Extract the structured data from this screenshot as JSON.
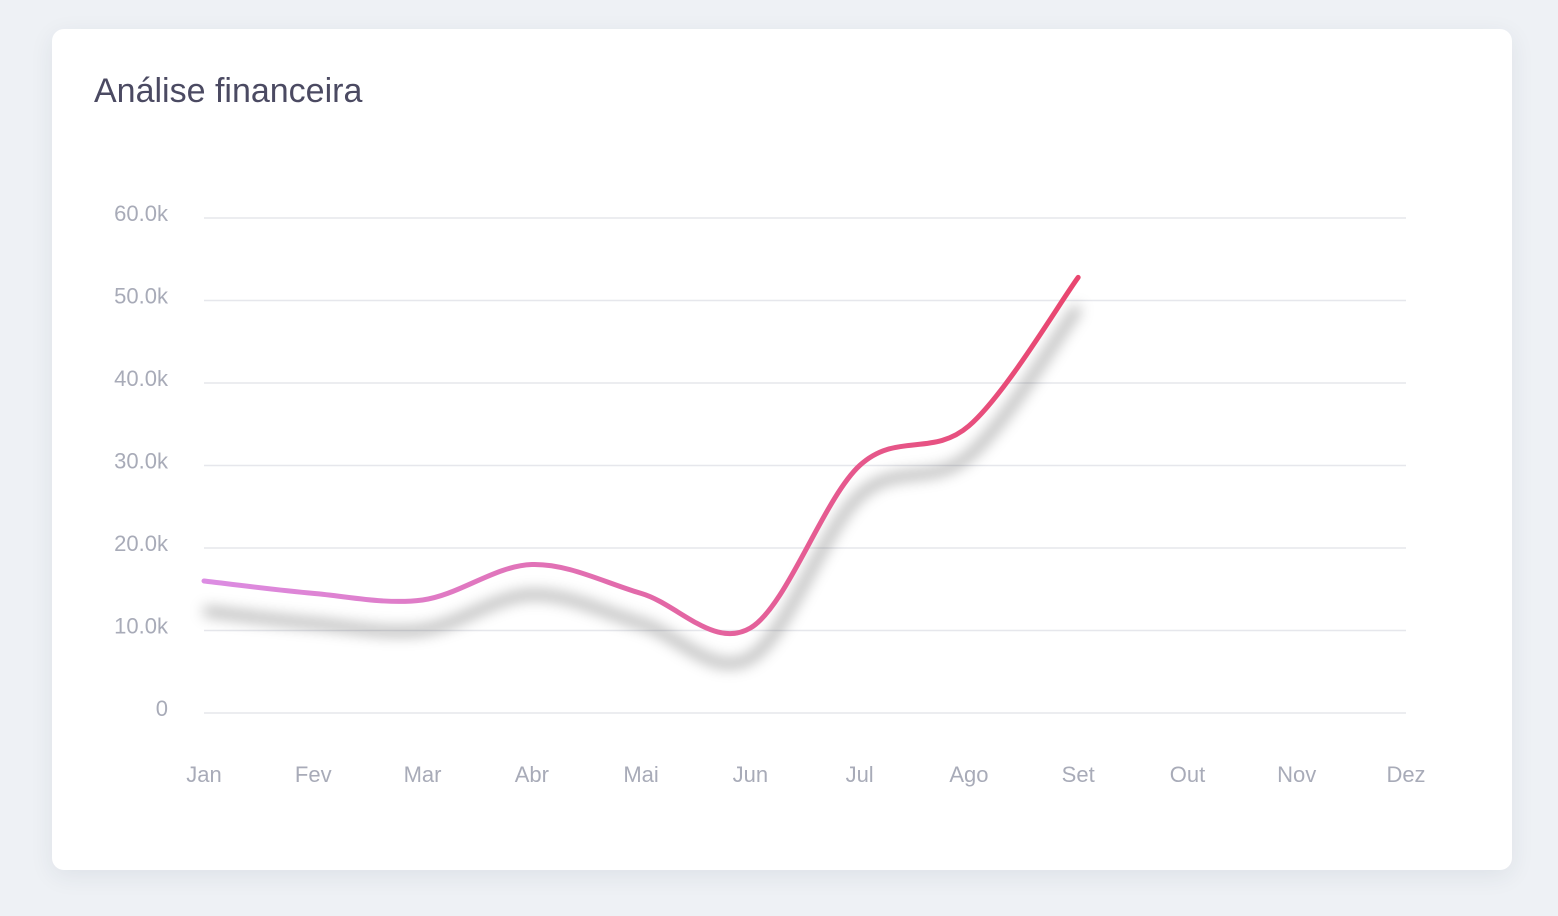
{
  "chart_data": {
    "type": "line",
    "title": "Análise financeira",
    "categories": [
      "Jan",
      "Fev",
      "Mar",
      "Abr",
      "Mai",
      "Jun",
      "Jul",
      "Ago",
      "Set",
      "Out",
      "Nov",
      "Dez"
    ],
    "values": [
      16000,
      14500,
      13700,
      18000,
      14500,
      10300,
      30000,
      34800,
      52800,
      null,
      null,
      null
    ],
    "gradient": [
      "#dc8de3",
      "#e9466f"
    ],
    "ylim": [
      0,
      60000
    ],
    "yticks": [
      0,
      {
        "value": 10000,
        "label": "10.0k"
      },
      {
        "value": 20000,
        "label": "20.0k"
      },
      {
        "value": 30000,
        "label": "30.0k"
      },
      {
        "value": 40000,
        "label": "40.0k"
      },
      {
        "value": 50000,
        "label": "50.0k"
      },
      {
        "value": 60000,
        "label": "60.0k"
      }
    ],
    "grid": true
  }
}
